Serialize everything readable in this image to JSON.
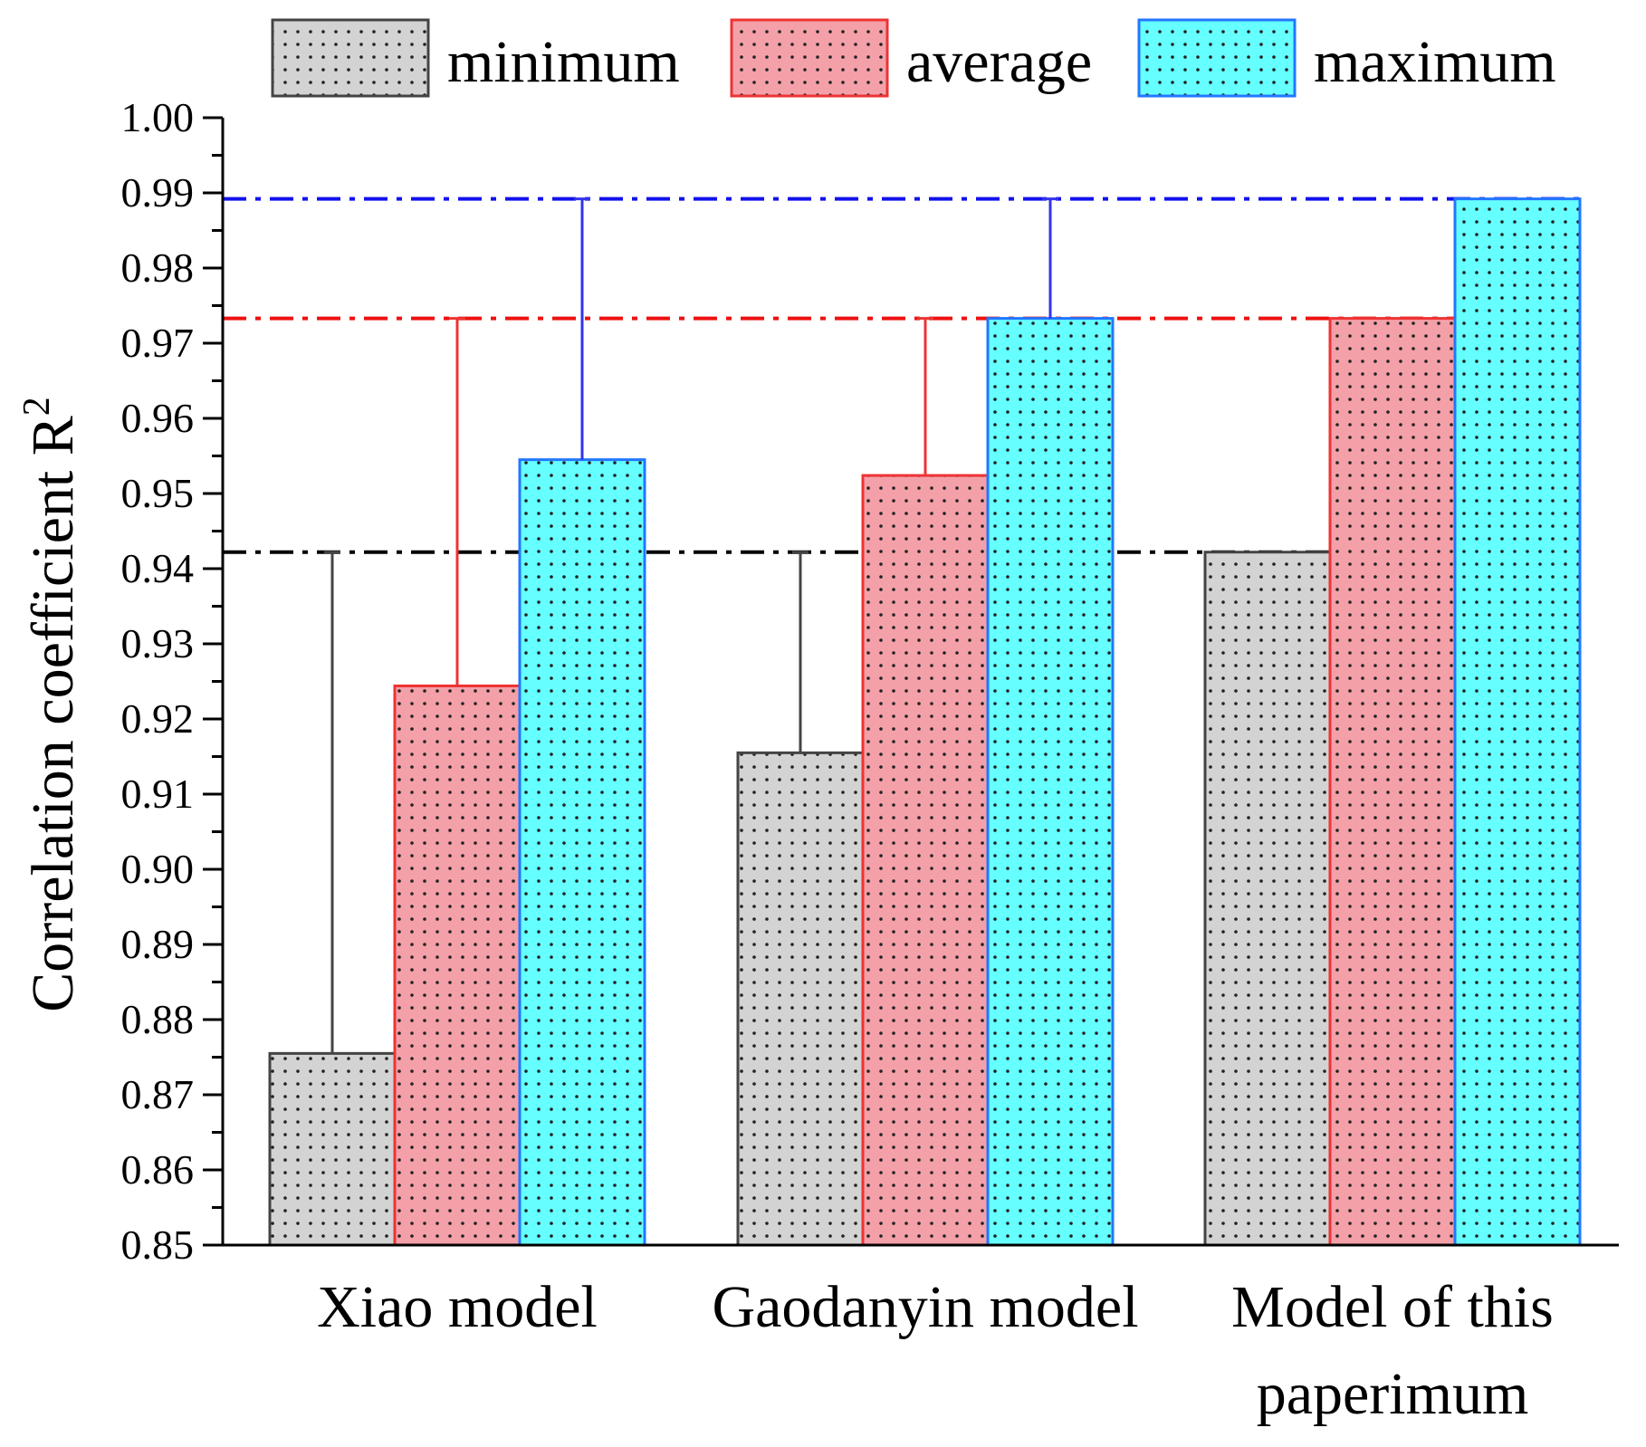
{
  "chart_data": {
    "type": "bar",
    "title": "",
    "xlabel": "",
    "ylabel": "Correlation coefficient R",
    "ylabel_superscript": "2",
    "ylim": [
      0.85,
      1.0
    ],
    "ytick_values": [
      0.85,
      0.86,
      0.87,
      0.88,
      0.89,
      0.9,
      0.91,
      0.92,
      0.93,
      0.94,
      0.95,
      0.96,
      0.97,
      0.98,
      0.99,
      1.0
    ],
    "ytick_labels": [
      "0.85",
      "0.86",
      "0.87",
      "0.88",
      "0.89",
      "0.90",
      "0.91",
      "0.92",
      "0.93",
      "0.94",
      "0.95",
      "0.96",
      "0.97",
      "0.98",
      "0.99",
      "1.00"
    ],
    "categories": [
      {
        "lines": [
          "Xiao model"
        ]
      },
      {
        "lines": [
          "Gaodanyin model"
        ]
      },
      {
        "lines": [
          "Model of this",
          "paperimum"
        ]
      }
    ],
    "legend_position": "top",
    "series": [
      {
        "name": "minimum",
        "values": [
          0.8755,
          0.9155,
          0.9422
        ],
        "fill": "#d3d3d3",
        "stroke": "#444444",
        "error_color": "#444444"
      },
      {
        "name": "average",
        "values": [
          0.9244,
          0.9524,
          0.9733
        ],
        "fill": "#f4a0a8",
        "stroke": "#ee3333",
        "error_color": "#ee3333"
      },
      {
        "name": "maximum",
        "values": [
          0.9545,
          0.9733,
          0.9892
        ],
        "fill": "#66ffff",
        "stroke": "#2277ff",
        "error_color": "#3333ee"
      }
    ],
    "reference_lines": [
      {
        "value": 0.9422,
        "color": "#000000"
      },
      {
        "value": 0.9733,
        "color": "#ee1111"
      },
      {
        "value": 0.9892,
        "color": "#1111ee"
      }
    ]
  }
}
